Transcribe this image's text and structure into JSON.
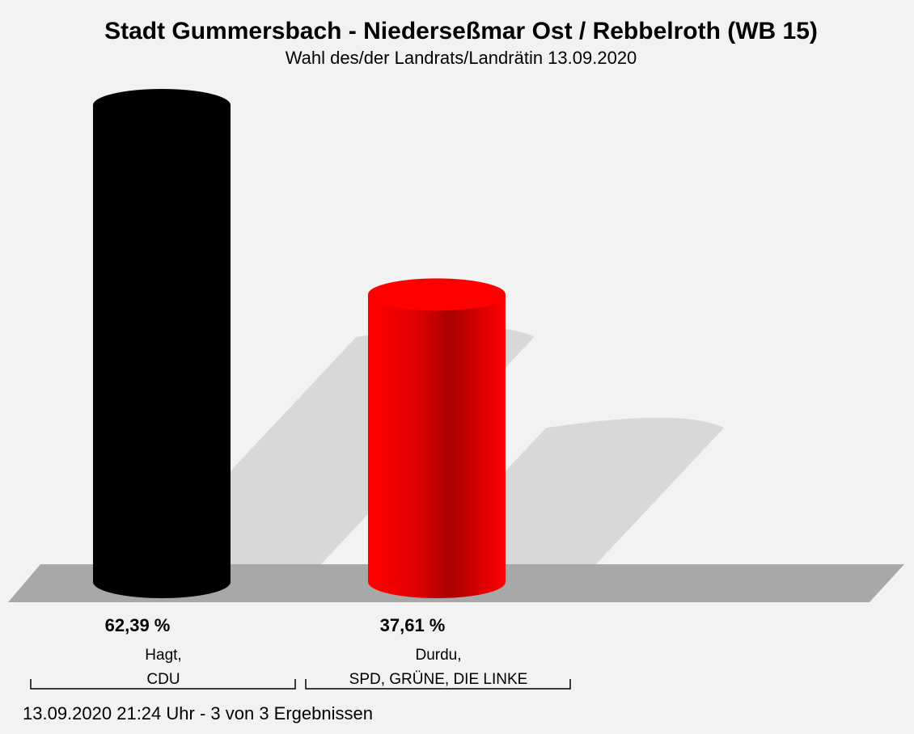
{
  "chart_data": {
    "type": "bar",
    "title": "Stadt Gummersbach - Niederseßmar Ost / Rebbelroth (WB 15)",
    "subtitle": "Wahl des/der Landrats/Landrätin 13.09.2020",
    "categories": [
      "Hagt,\nCDU",
      "Durdu,\nSPD, GRÜNE, DIE LINKE"
    ],
    "values": [
      62.39,
      37.61
    ],
    "value_labels": [
      "62,39 %",
      "37,61 %"
    ],
    "colors": [
      "#000000",
      "#ff0000"
    ],
    "footer": "13.09.2020 21:24 Uhr - 3 von 3 Ergebnissen"
  }
}
